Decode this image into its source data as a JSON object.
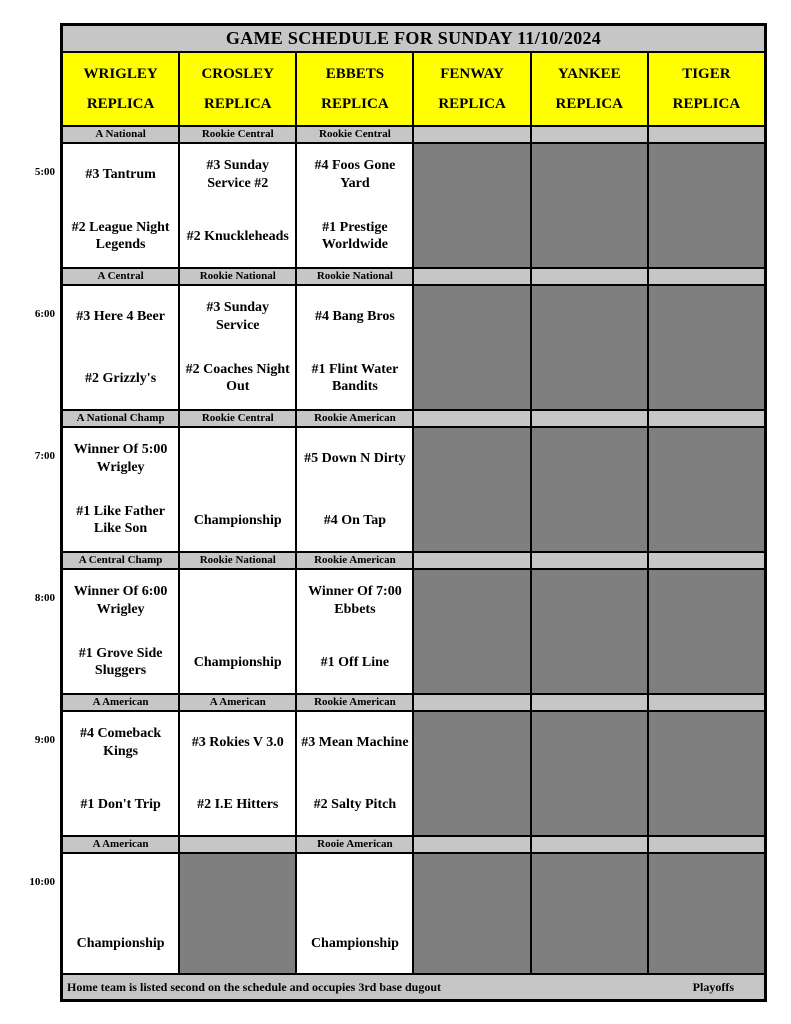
{
  "schedule": {
    "title": "GAME SCHEDULE FOR SUNDAY 11/10/2024",
    "venues": [
      {
        "name": "WRIGLEY",
        "sub": "REPLICA"
      },
      {
        "name": "CROSLEY",
        "sub": "REPLICA"
      },
      {
        "name": "EBBETS",
        "sub": "REPLICA"
      },
      {
        "name": "FENWAY",
        "sub": "REPLICA"
      },
      {
        "name": "YANKEE",
        "sub": "REPLICA"
      },
      {
        "name": "TIGER",
        "sub": "REPLICA"
      }
    ],
    "blocks": [
      {
        "time": "5:00",
        "labels": [
          "A National",
          "Rookie Central",
          "Rookie Central",
          "",
          "",
          ""
        ],
        "games": [
          {
            "type": "game",
            "team1": "#3 Tantrum",
            "team2": "#2 League Night Legends"
          },
          {
            "type": "game",
            "team1": "#3 Sunday Service #2",
            "team2": "#2 Knuckleheads"
          },
          {
            "type": "game",
            "team1": "#4 Foos Gone Yard",
            "team2": "#1 Prestige Worldwide"
          },
          {
            "type": "empty"
          },
          {
            "type": "empty"
          },
          {
            "type": "empty"
          }
        ]
      },
      {
        "time": "6:00",
        "labels": [
          "A Central",
          "Rookie National",
          "Rookie National",
          "",
          "",
          ""
        ],
        "games": [
          {
            "type": "game",
            "team1": "#3 Here 4 Beer",
            "team2": "#2 Grizzly's"
          },
          {
            "type": "game",
            "team1": "#3 Sunday Service",
            "team2": "#2 Coaches Night Out"
          },
          {
            "type": "game",
            "team1": "#4 Bang Bros",
            "team2": "#1 Flint Water Bandits"
          },
          {
            "type": "empty"
          },
          {
            "type": "empty"
          },
          {
            "type": "empty"
          }
        ]
      },
      {
        "time": "7:00",
        "labels": [
          "A National Champ",
          "Rookie Central",
          "Rookie American",
          "",
          "",
          ""
        ],
        "games": [
          {
            "type": "game",
            "team1": "Winner Of 5:00 Wrigley",
            "team2": "#1 Like Father Like Son"
          },
          {
            "type": "game",
            "team1": "",
            "team2": "Championship"
          },
          {
            "type": "game",
            "team1": "#5 Down N Dirty",
            "team2": "#4 On Tap"
          },
          {
            "type": "empty"
          },
          {
            "type": "empty"
          },
          {
            "type": "empty"
          }
        ]
      },
      {
        "time": "8:00",
        "labels": [
          "A Central Champ",
          "Rookie National",
          "Rookie American",
          "",
          "",
          ""
        ],
        "games": [
          {
            "type": "game",
            "team1": "Winner Of 6:00 Wrigley",
            "team2": "#1 Grove Side Sluggers"
          },
          {
            "type": "game",
            "team1": "",
            "team2": "Championship"
          },
          {
            "type": "game",
            "team1": "Winner Of 7:00 Ebbets",
            "team2": "#1 Off Line"
          },
          {
            "type": "empty"
          },
          {
            "type": "empty"
          },
          {
            "type": "empty"
          }
        ]
      },
      {
        "time": "9:00",
        "labels": [
          "A American",
          "A American",
          "Rookie American",
          "",
          "",
          ""
        ],
        "games": [
          {
            "type": "game",
            "team1": "#4 Comeback Kings",
            "team2": "#1 Don't Trip"
          },
          {
            "type": "game",
            "team1": "#3 Rokies V 3.0",
            "team2": "#2 I.E Hitters"
          },
          {
            "type": "game",
            "team1": "#3 Mean Machine",
            "team2": "#2 Salty Pitch"
          },
          {
            "type": "empty"
          },
          {
            "type": "empty"
          },
          {
            "type": "empty"
          }
        ]
      },
      {
        "time": "10:00",
        "labels": [
          "A American",
          "",
          "Rooie American",
          "",
          "",
          ""
        ],
        "games": [
          {
            "type": "game",
            "team1": "",
            "team2": "Championship"
          },
          {
            "type": "empty"
          },
          {
            "type": "game",
            "team1": "",
            "team2": "Championship"
          },
          {
            "type": "empty"
          },
          {
            "type": "empty"
          },
          {
            "type": "empty"
          }
        ]
      }
    ],
    "footer": {
      "note": "Home team is listed second on the schedule and occupies 3rd base dugout",
      "playoffs": "Playoffs"
    },
    "colors": {
      "header_yellow": "#ffff00",
      "bar_gray": "#c6c6c6",
      "strip_gray": "#c6c6c6",
      "empty_cell_gray": "#7f7f7f",
      "border_black": "#000000"
    }
  }
}
